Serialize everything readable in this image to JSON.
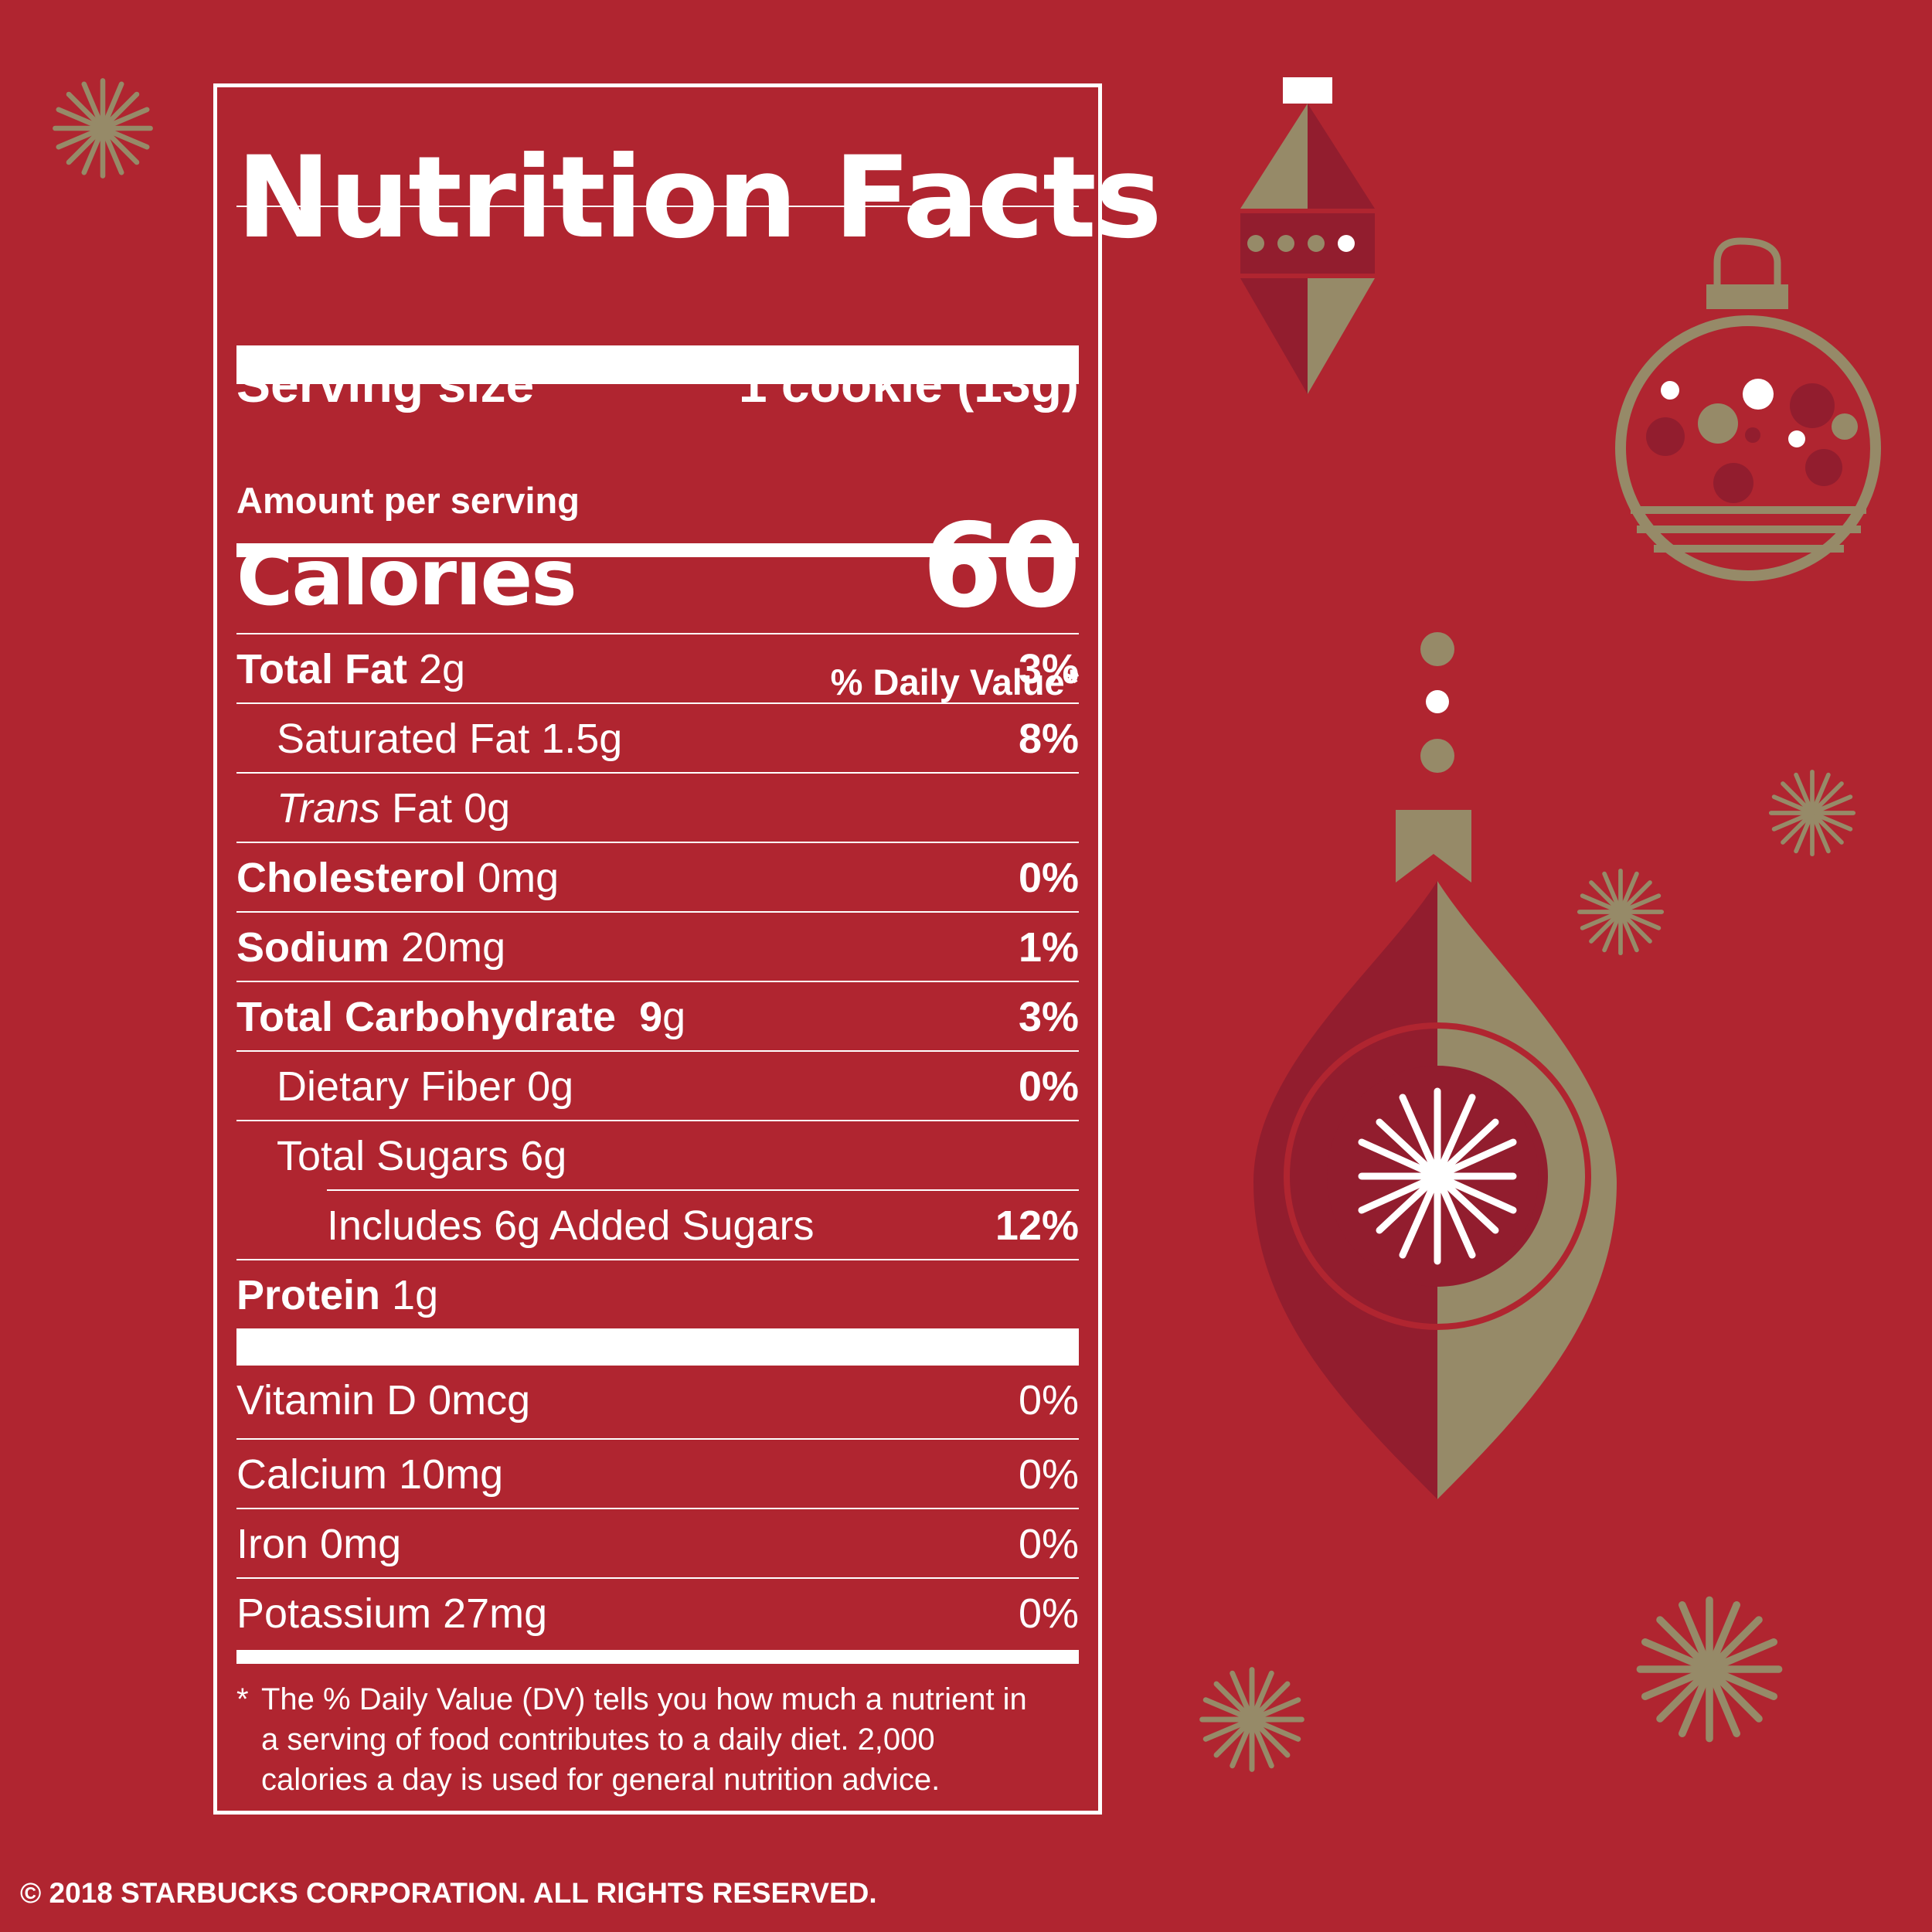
{
  "label": {
    "title": "Nutrition Facts",
    "serving_size_label": "Serving size",
    "serving_size_value": "1 cookie (13g)",
    "amount_per_serving": "Amount per serving",
    "calories_label": "Calories",
    "calories_value": "60",
    "daily_value_header": "% Daily Value*",
    "nutrients": [
      {
        "name": "Total Fat",
        "amount": "2g",
        "dv": "3%"
      },
      {
        "name": "Saturated Fat",
        "amount": "1.5g",
        "dv": "8%"
      },
      {
        "name": "Trans",
        "suffix": "Fat 0g",
        "dv": ""
      },
      {
        "name": "Cholesterol",
        "amount": "0mg",
        "dv": "0%"
      },
      {
        "name": "Sodium",
        "amount": "20mg",
        "dv": "1%"
      },
      {
        "name": "Total Carbohydrate",
        "amount": "9",
        "unit": "g",
        "dv": "3%"
      },
      {
        "name": "Dietary Fiber",
        "amount": "0g",
        "dv": "0%"
      },
      {
        "name": "Total Sugars",
        "amount": "6g",
        "dv": ""
      },
      {
        "name": "Includes 6g Added Sugars",
        "dv": "12%"
      },
      {
        "name": "Protein",
        "amount": "1g",
        "dv": ""
      }
    ],
    "vitamins": [
      {
        "name": "Vitamin D 0mcg",
        "dv": "0%"
      },
      {
        "name": "Calcium 10mg",
        "dv": "0%"
      },
      {
        "name": "Iron 0mg",
        "dv": "0%"
      },
      {
        "name": "Potassium 27mg",
        "dv": "0%"
      }
    ],
    "footnote_star": "*",
    "footnote": "The % Daily Value (DV) tells you how much a nutrient in a serving of food contributes to a daily diet. 2,000 calories a day is used for general nutrition advice."
  },
  "copyright": "© 2018 STARBUCKS CORPORATION. ALL RIGHTS RESERVED.",
  "colors": {
    "background": "#b02530",
    "gold": "#968a68",
    "dark_red": "#921d2e",
    "white": "#ffffff"
  },
  "decorations": [
    "sparkle-icon",
    "diamond-ornament-icon",
    "ball-ornament-icon",
    "drop-ornament-icon"
  ]
}
